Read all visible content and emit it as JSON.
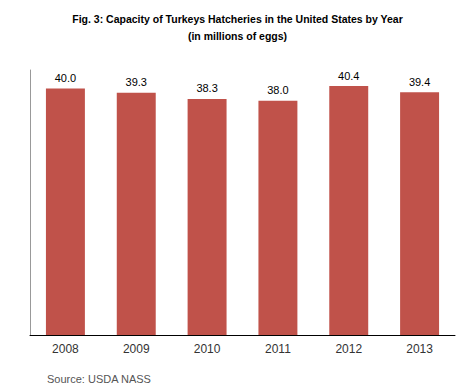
{
  "chart_data": {
    "type": "bar",
    "title": "Fig. 3: Capacity of Turkeys Hatcheries in the United States by Year",
    "subtitle": "(in millions of eggs)",
    "annotation": "Source: USDA NASS",
    "categories": [
      "2008",
      "2009",
      "2010",
      "2011",
      "2012",
      "2013"
    ],
    "values": [
      40.0,
      39.3,
      38.3,
      38.0,
      40.4,
      39.4
    ],
    "value_labels": [
      "40.0",
      "39.3",
      "38.3",
      "38.0",
      "40.4",
      "39.4"
    ],
    "color": "#c0524a",
    "ylim": [
      0,
      43
    ],
    "grid": false,
    "data_labels": true,
    "tick_labels": "x"
  }
}
